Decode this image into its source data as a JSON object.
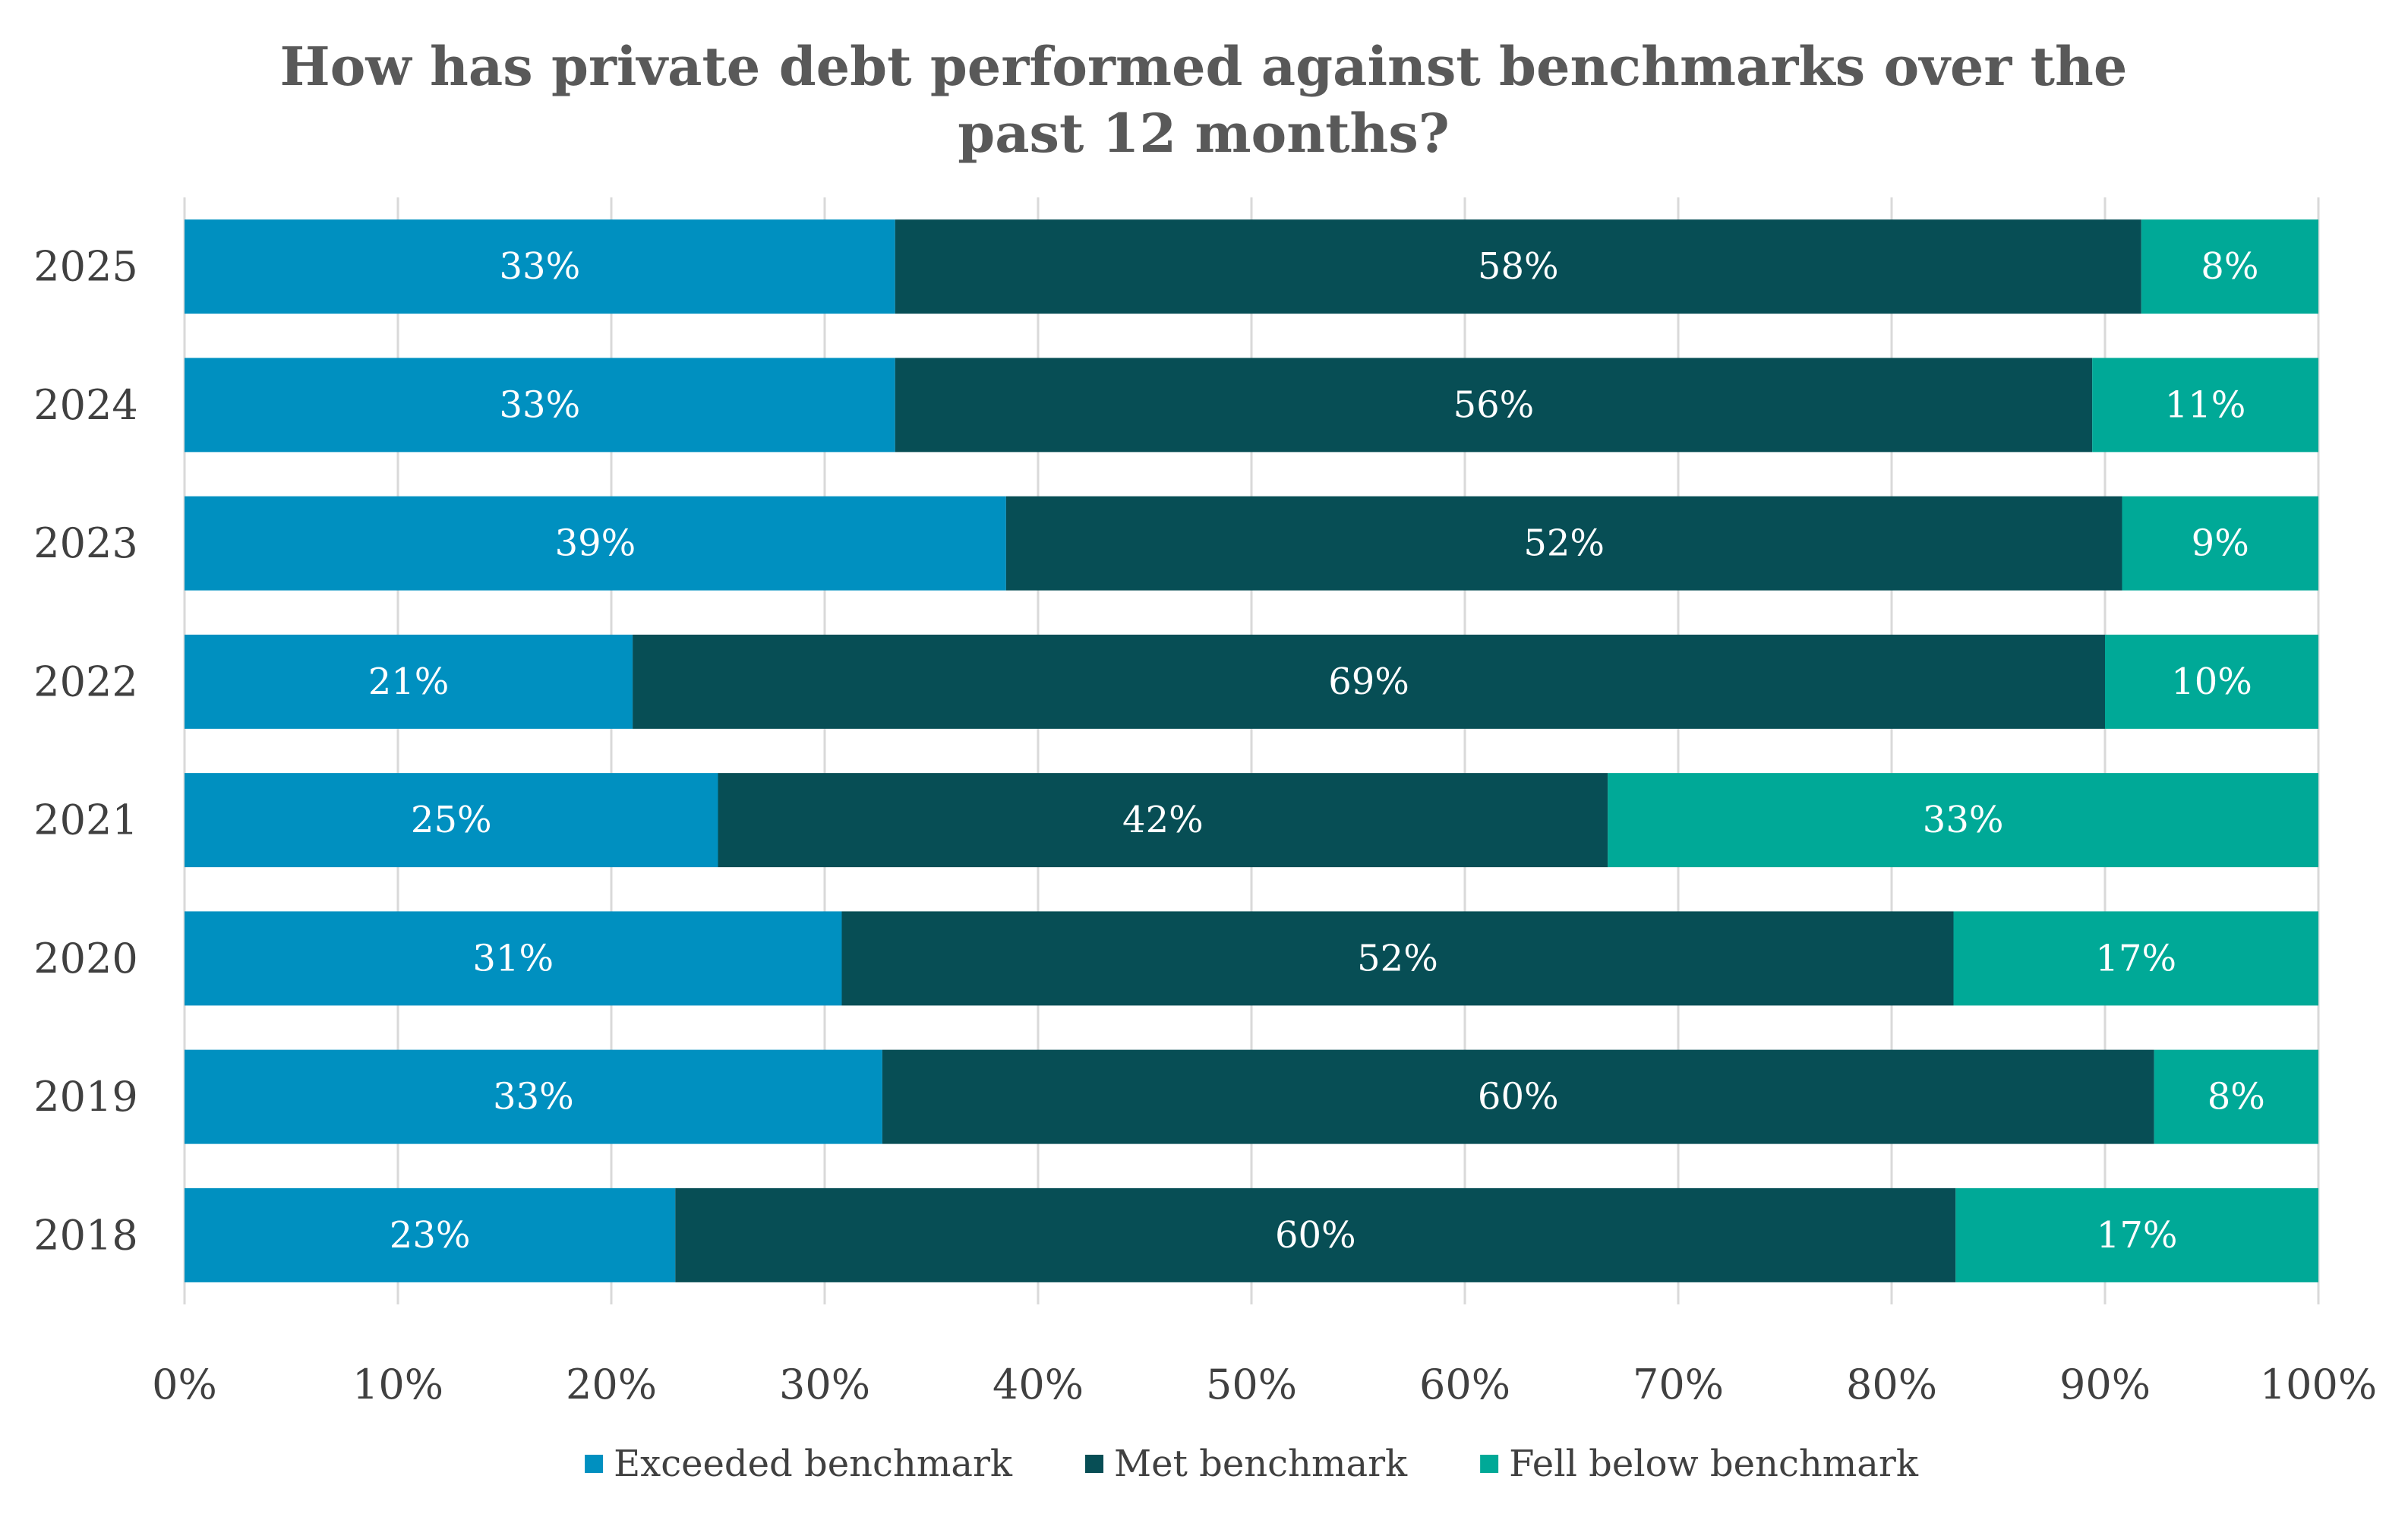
{
  "chart_data": {
    "type": "bar",
    "orientation": "horizontal",
    "stacked": true,
    "title_lines": [
      "How has private debt performed against benchmarks over the",
      "past 12 months?"
    ],
    "categories": [
      "2025",
      "2024",
      "2023",
      "2022",
      "2021",
      "2020",
      "2019",
      "2018"
    ],
    "series": [
      {
        "name": "Exceeded benchmark",
        "color": "#0090C0",
        "values": [
          33.3,
          33.3,
          38.5,
          21,
          25,
          30.8,
          32.7,
          23
        ],
        "labels": [
          "33%",
          "33%",
          "39%",
          "21%",
          "25%",
          "31%",
          "33%",
          "23%"
        ]
      },
      {
        "name": "Met benchmark",
        "color": "#074E55",
        "values": [
          58.4,
          56.1,
          52.3,
          69,
          41.7,
          52.1,
          59.6,
          60
        ],
        "labels": [
          "58%",
          "56%",
          "52%",
          "69%",
          "42%",
          "52%",
          "60%",
          "60%"
        ]
      },
      {
        "name": "Fell below benchmark",
        "color": "#00A997",
        "values": [
          8.3,
          10.6,
          9.2,
          10,
          33.3,
          17.1,
          7.7,
          17
        ],
        "labels": [
          "8%",
          "11%",
          "9%",
          "10%",
          "33%",
          "17%",
          "8%",
          "17%"
        ]
      }
    ],
    "xlim": [
      0,
      100
    ],
    "x_ticks": [
      "0%",
      "10%",
      "20%",
      "30%",
      "40%",
      "50%",
      "60%",
      "70%",
      "80%",
      "90%",
      "100%"
    ],
    "grid": true,
    "legend_position": "bottom"
  }
}
